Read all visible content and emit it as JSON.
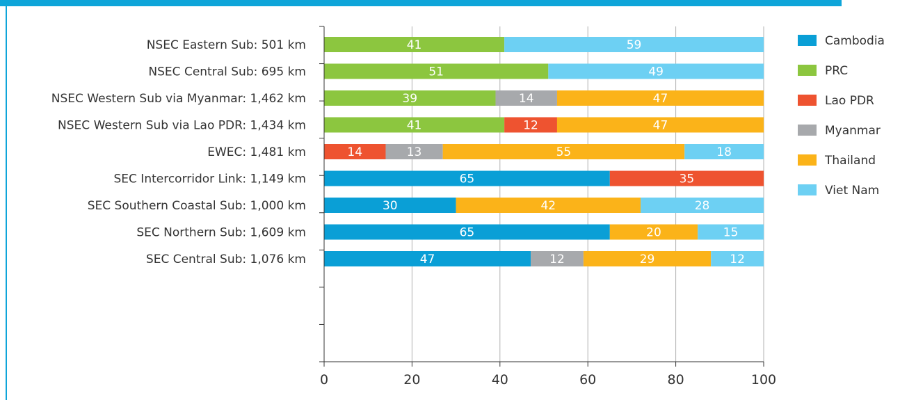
{
  "chart_data": {
    "type": "bar",
    "orientation": "horizontal",
    "stacked": true,
    "categories": [
      "NSEC Eastern Sub: 501 km",
      "NSEC Central Sub: 695 km",
      "NSEC Western Sub via Myanmar: 1,462 km",
      "NSEC Western Sub via Lao PDR: 1,434 km",
      "EWEC: 1,481 km",
      "SEC Intercorridor Link: 1,149 km",
      "SEC Southern Coastal Sub:  1,000 km",
      "SEC Northern Sub: 1,609 km",
      "SEC Central Sub:  1,076 km"
    ],
    "series": [
      {
        "name": "Cambodia",
        "color": "#0a9fd6",
        "values": [
          0,
          0,
          0,
          0,
          0,
          65,
          30,
          65,
          47
        ]
      },
      {
        "name": "PRC",
        "color": "#8cc63f",
        "values": [
          41,
          51,
          39,
          41,
          0,
          0,
          0,
          0,
          0
        ]
      },
      {
        "name": "Lao PDR",
        "color": "#ee5330",
        "values": [
          0,
          0,
          0,
          12,
          14,
          35,
          0,
          0,
          0
        ]
      },
      {
        "name": "Myanmar",
        "color": "#a7a9ac",
        "values": [
          0,
          0,
          14,
          0,
          13,
          0,
          0,
          0,
          12
        ]
      },
      {
        "name": "Thailand",
        "color": "#fbb319",
        "values": [
          0,
          0,
          47,
          47,
          55,
          0,
          42,
          20,
          29
        ]
      },
      {
        "name": "Viet Nam",
        "color": "#6dd0f3",
        "values": [
          59,
          49,
          0,
          0,
          18,
          0,
          28,
          15,
          12
        ]
      }
    ],
    "xlim": [
      0,
      100
    ],
    "xticks": [
      "0",
      "20",
      "40",
      "60",
      "80",
      "100"
    ],
    "grid": "vertical",
    "legend": "right",
    "title": "",
    "xlabel": "",
    "ylabel": ""
  },
  "colors": {
    "frame": "#0ea5d9",
    "axis": "#333333",
    "grid": "#b0b0b0"
  }
}
